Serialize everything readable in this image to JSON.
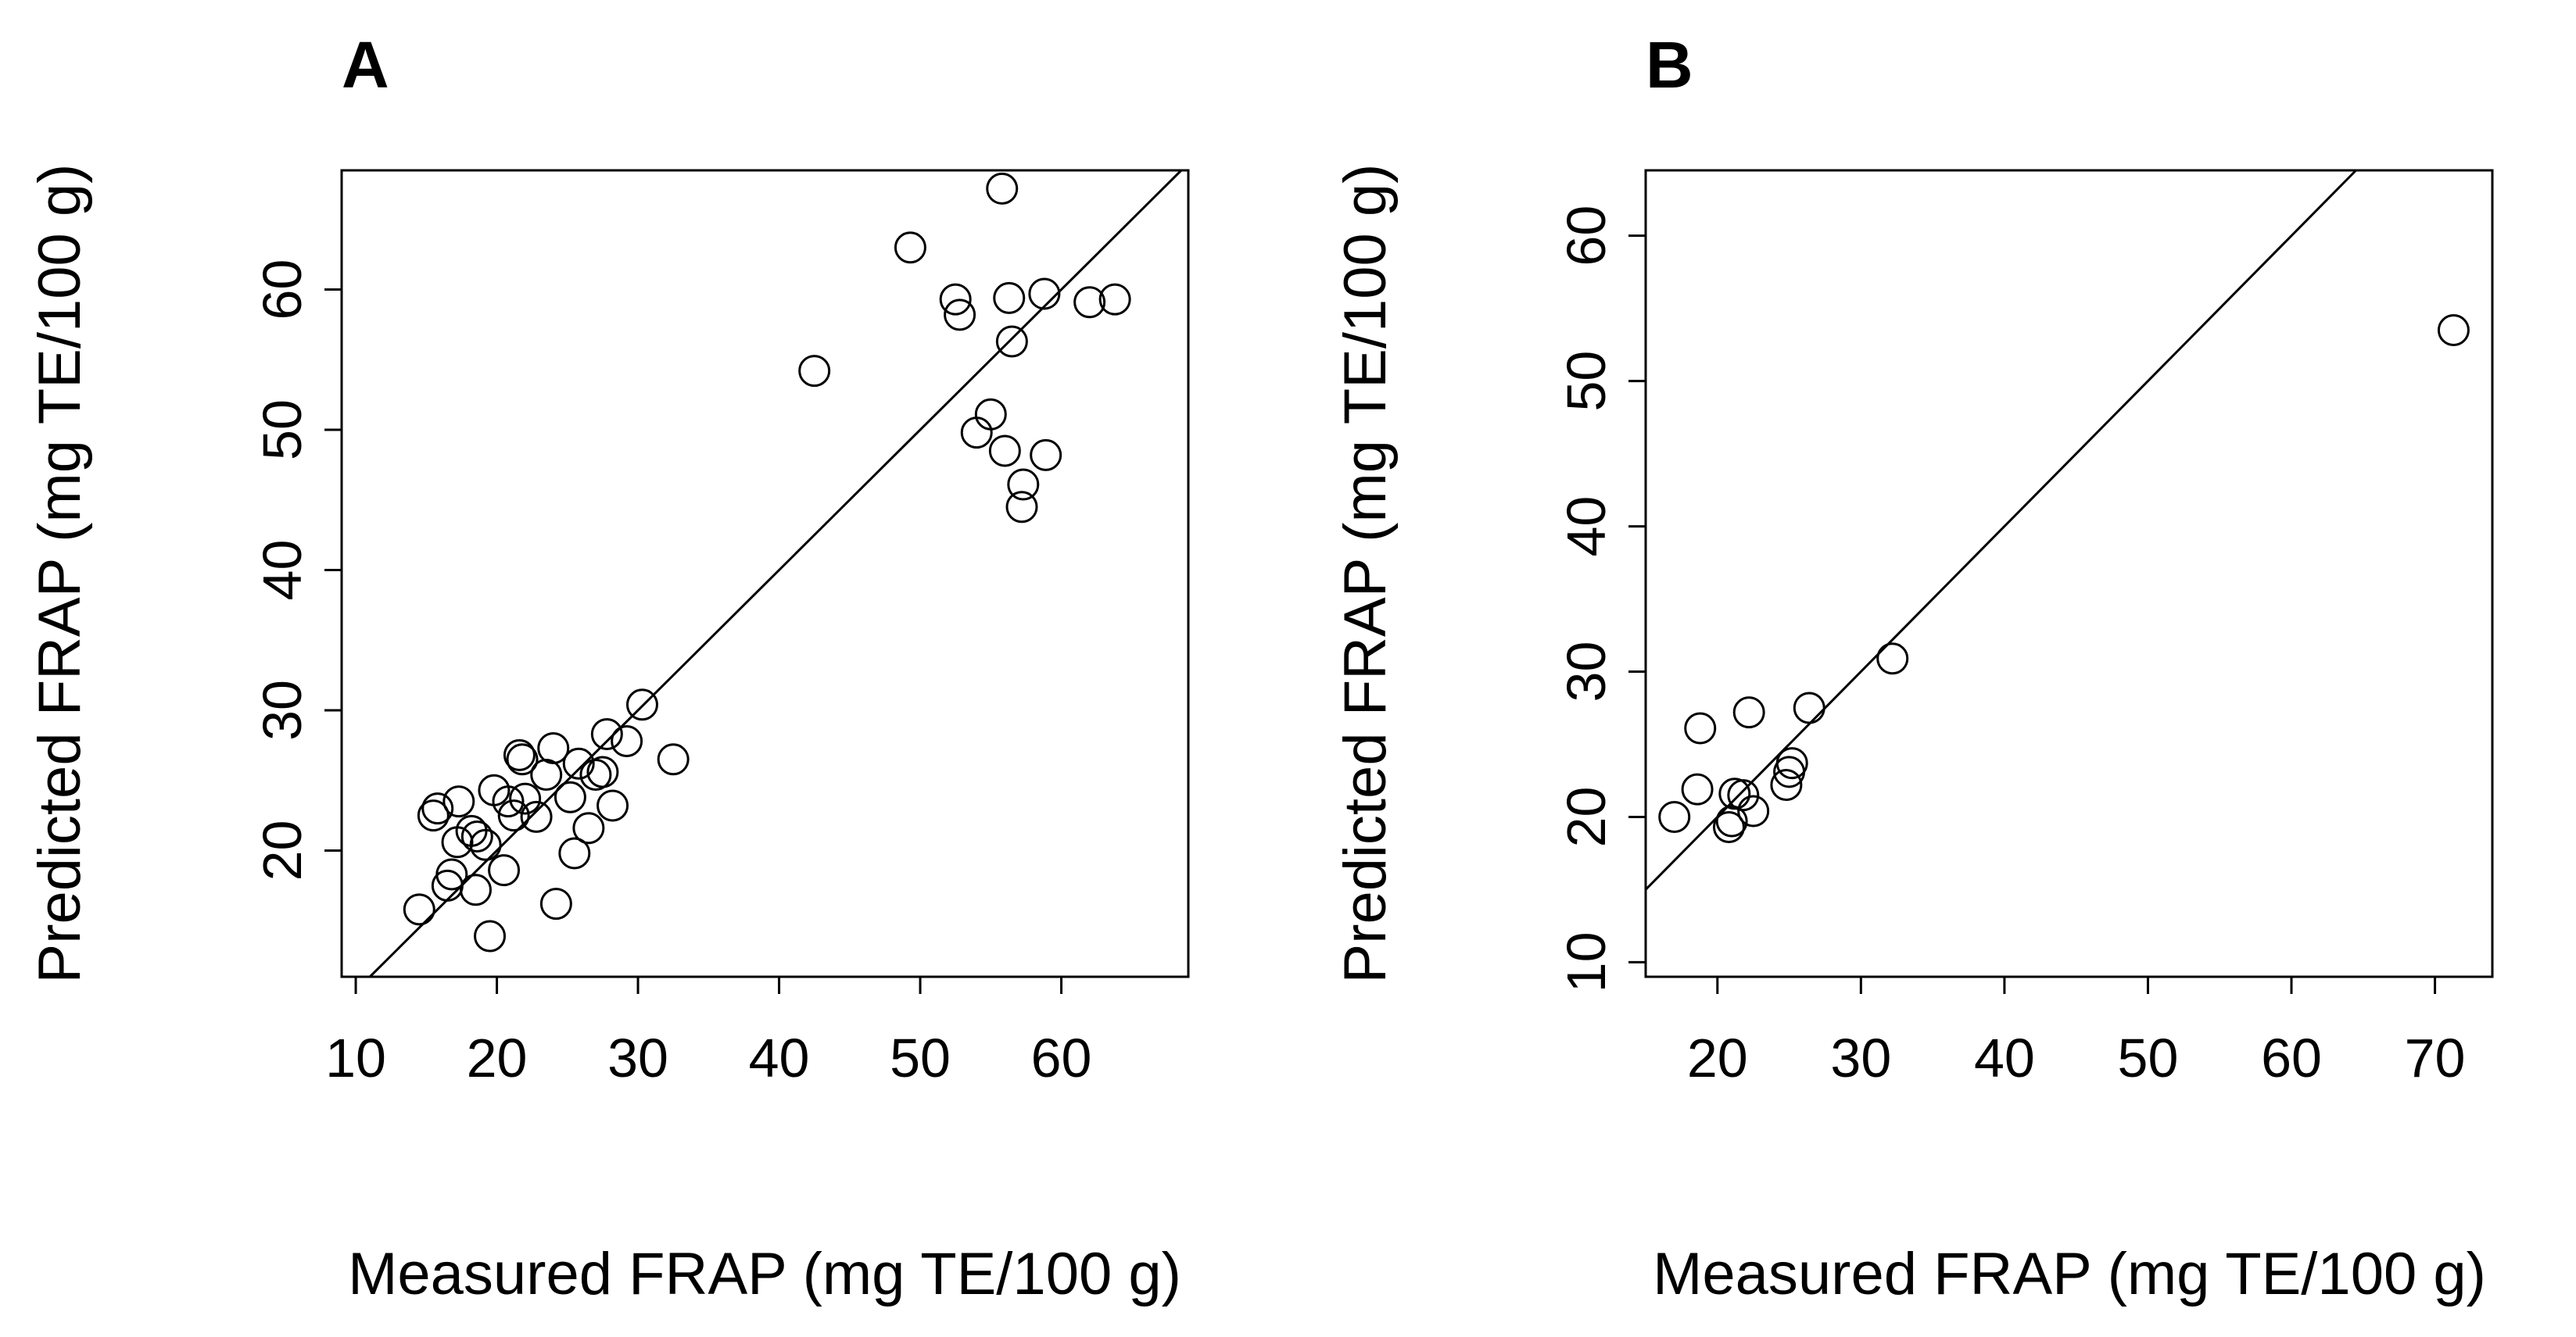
{
  "chart_data": [
    {
      "type": "scatter",
      "panel": "A",
      "xlabel": "Measured FRAP (mg TE/100 g)",
      "ylabel": "Predicted FRAP (mg TE/100 g)",
      "xlim": [
        9,
        69
      ],
      "ylim": [
        11,
        68.5
      ],
      "xticks": [
        10,
        20,
        30,
        40,
        50,
        60
      ],
      "yticks": [
        20,
        30,
        40,
        50,
        60
      ],
      "reference_line": "y = x",
      "points": [
        [
          14.5,
          15.8
        ],
        [
          15.5,
          22.5
        ],
        [
          15.8,
          23.0
        ],
        [
          16.5,
          17.5
        ],
        [
          16.8,
          18.3
        ],
        [
          17.2,
          20.6
        ],
        [
          17.3,
          23.5
        ],
        [
          18.2,
          21.4
        ],
        [
          18.5,
          17.2
        ],
        [
          18.6,
          21.0
        ],
        [
          19.2,
          20.4
        ],
        [
          19.5,
          13.9
        ],
        [
          19.8,
          24.3
        ],
        [
          20.5,
          18.6
        ],
        [
          20.8,
          23.5
        ],
        [
          21.2,
          22.5
        ],
        [
          21.6,
          26.8
        ],
        [
          21.8,
          26.5
        ],
        [
          22.0,
          23.7
        ],
        [
          22.8,
          22.4
        ],
        [
          23.5,
          25.4
        ],
        [
          24.0,
          27.3
        ],
        [
          24.2,
          16.2
        ],
        [
          25.2,
          23.8
        ],
        [
          25.5,
          19.8
        ],
        [
          25.8,
          26.2
        ],
        [
          26.5,
          21.6
        ],
        [
          27.0,
          25.4
        ],
        [
          27.5,
          25.6
        ],
        [
          27.8,
          28.3
        ],
        [
          28.2,
          23.2
        ],
        [
          29.2,
          27.8
        ],
        [
          30.3,
          30.4
        ],
        [
          32.5,
          26.5
        ],
        [
          42.5,
          54.2
        ],
        [
          49.3,
          63.0
        ],
        [
          52.5,
          59.3
        ],
        [
          52.8,
          58.2
        ],
        [
          54.0,
          49.8
        ],
        [
          55.0,
          51.1
        ],
        [
          55.8,
          67.2
        ],
        [
          56.0,
          48.5
        ],
        [
          56.3,
          59.4
        ],
        [
          56.5,
          56.3
        ],
        [
          57.2,
          44.5
        ],
        [
          57.3,
          46.1
        ],
        [
          58.8,
          59.7
        ],
        [
          58.9,
          48.2
        ],
        [
          62.0,
          59.1
        ],
        [
          63.8,
          59.3
        ]
      ]
    },
    {
      "type": "scatter",
      "panel": "B",
      "xlabel": "Measured FRAP (mg TE/100 g)",
      "ylabel": "Predicted FRAP (mg TE/100 g)",
      "xlim": [
        15,
        74
      ],
      "ylim": [
        9,
        64.5
      ],
      "xticks": [
        20,
        30,
        40,
        50,
        60,
        70
      ],
      "yticks": [
        10,
        20,
        30,
        40,
        50,
        60
      ],
      "reference_line": "y = x",
      "points": [
        [
          17.0,
          20.0
        ],
        [
          18.6,
          21.9
        ],
        [
          18.8,
          26.1
        ],
        [
          20.8,
          19.3
        ],
        [
          21.0,
          19.7
        ],
        [
          21.2,
          21.6
        ],
        [
          21.8,
          21.5
        ],
        [
          22.2,
          27.2
        ],
        [
          22.5,
          20.4
        ],
        [
          24.8,
          22.2
        ],
        [
          25.0,
          23.1
        ],
        [
          25.2,
          23.7
        ],
        [
          26.4,
          27.5
        ],
        [
          32.2,
          30.9
        ],
        [
          71.3,
          53.5
        ]
      ]
    }
  ]
}
